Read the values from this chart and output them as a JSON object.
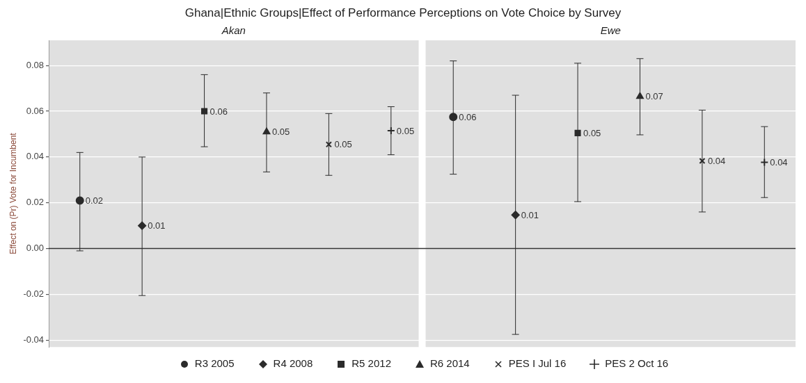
{
  "chart_data": {
    "type": "scatter",
    "title": "Ghana|Ethnic Groups|Effect of Performance Perceptions on Vote Choice by Survey",
    "annotations": [
      "Akan",
      "Ewe"
    ],
    "ylabel": "Effect on (Pr) Vote for Incumbent",
    "categories": [
      null,
      null,
      null,
      null,
      null,
      null,
      null,
      null,
      null,
      null,
      null,
      null
    ],
    "ylim": [
      -0.043,
      0.091
    ],
    "yticks": [
      {
        "value": -0.04,
        "label": "-0.04"
      },
      {
        "value": -0.02,
        "label": "-0.02"
      },
      {
        "value": 0,
        "label": "0.00"
      },
      {
        "value": 0.02,
        "label": "0.02"
      },
      {
        "value": 0.04,
        "label": "0.04"
      },
      {
        "value": 0.06,
        "label": "0.06"
      },
      {
        "value": 0.08,
        "label": "0.08"
      }
    ],
    "grid": "y",
    "legend": "bottom",
    "tick_labels": "y",
    "ref_lines": [
      {
        "axis": "y",
        "value": 0,
        "color": "#333333"
      }
    ],
    "series": [
      {
        "name": "R3 2005",
        "color": "#2b2b2b",
        "marker": "circle",
        "values": [
          0.021,
          null,
          null,
          null,
          null,
          null,
          0.0575,
          null,
          null,
          null,
          null,
          null
        ],
        "errors": [
          [
            -0.001,
            0.042
          ],
          null,
          null,
          null,
          null,
          null,
          [
            0.0325,
            0.082
          ],
          null,
          null,
          null,
          null,
          null
        ],
        "value_labels": [
          "0.02",
          null,
          null,
          null,
          null,
          null,
          "0.06",
          null,
          null,
          null,
          null,
          null
        ]
      },
      {
        "name": "R4 2008",
        "color": "#2b2b2b",
        "marker": "diamond",
        "values": [
          null,
          0.01,
          null,
          null,
          null,
          null,
          null,
          0.0147,
          null,
          null,
          null,
          null
        ],
        "errors": [
          null,
          [
            -0.0205,
            0.04
          ],
          null,
          null,
          null,
          null,
          null,
          [
            -0.0375,
            0.067
          ],
          null,
          null,
          null,
          null
        ],
        "value_labels": [
          null,
          "0.01",
          null,
          null,
          null,
          null,
          null,
          "0.01",
          null,
          null,
          null,
          null
        ]
      },
      {
        "name": "R5 2012",
        "color": "#2b2b2b",
        "marker": "square",
        "values": [
          null,
          null,
          0.06,
          null,
          null,
          null,
          null,
          null,
          0.0505,
          null,
          null,
          null
        ],
        "errors": [
          null,
          null,
          [
            0.0445,
            0.076
          ],
          null,
          null,
          null,
          null,
          null,
          [
            0.0205,
            0.081
          ],
          null,
          null,
          null
        ],
        "value_labels": [
          null,
          null,
          "0.06",
          null,
          null,
          null,
          null,
          null,
          "0.05",
          null,
          null,
          null
        ]
      },
      {
        "name": "R6 2014",
        "color": "#2b2b2b",
        "marker": "triangle",
        "values": [
          null,
          null,
          null,
          0.051,
          null,
          null,
          null,
          null,
          null,
          0.0665,
          null,
          null
        ],
        "errors": [
          null,
          null,
          null,
          [
            0.0335,
            0.068
          ],
          null,
          null,
          null,
          null,
          null,
          [
            0.0497,
            0.083
          ],
          null,
          null
        ],
        "value_labels": [
          null,
          null,
          null,
          "0.05",
          null,
          null,
          null,
          null,
          null,
          "0.07",
          null,
          null
        ]
      },
      {
        "name": "PES I Jul 16",
        "color": "#2b2b2b",
        "marker": "cross",
        "values": [
          null,
          null,
          null,
          null,
          0.0455,
          null,
          null,
          null,
          null,
          null,
          0.0383,
          null
        ],
        "errors": [
          null,
          null,
          null,
          null,
          [
            0.032,
            0.059
          ],
          null,
          null,
          null,
          null,
          null,
          [
            0.016,
            0.0605
          ],
          null
        ],
        "value_labels": [
          null,
          null,
          null,
          null,
          "0.05",
          null,
          null,
          null,
          null,
          null,
          "0.04",
          null
        ]
      },
      {
        "name": "PES 2 Oct 16",
        "color": "#2b2b2b",
        "marker": "plus",
        "values": [
          null,
          null,
          null,
          null,
          null,
          0.0515,
          null,
          null,
          null,
          null,
          null,
          0.0377
        ],
        "errors": [
          null,
          null,
          null,
          null,
          null,
          [
            0.041,
            0.062
          ],
          null,
          null,
          null,
          null,
          null,
          [
            0.0223,
            0.0533
          ]
        ],
        "value_labels": [
          null,
          null,
          null,
          null,
          null,
          "0.05",
          null,
          null,
          null,
          null,
          null,
          "0.04"
        ]
      }
    ]
  }
}
